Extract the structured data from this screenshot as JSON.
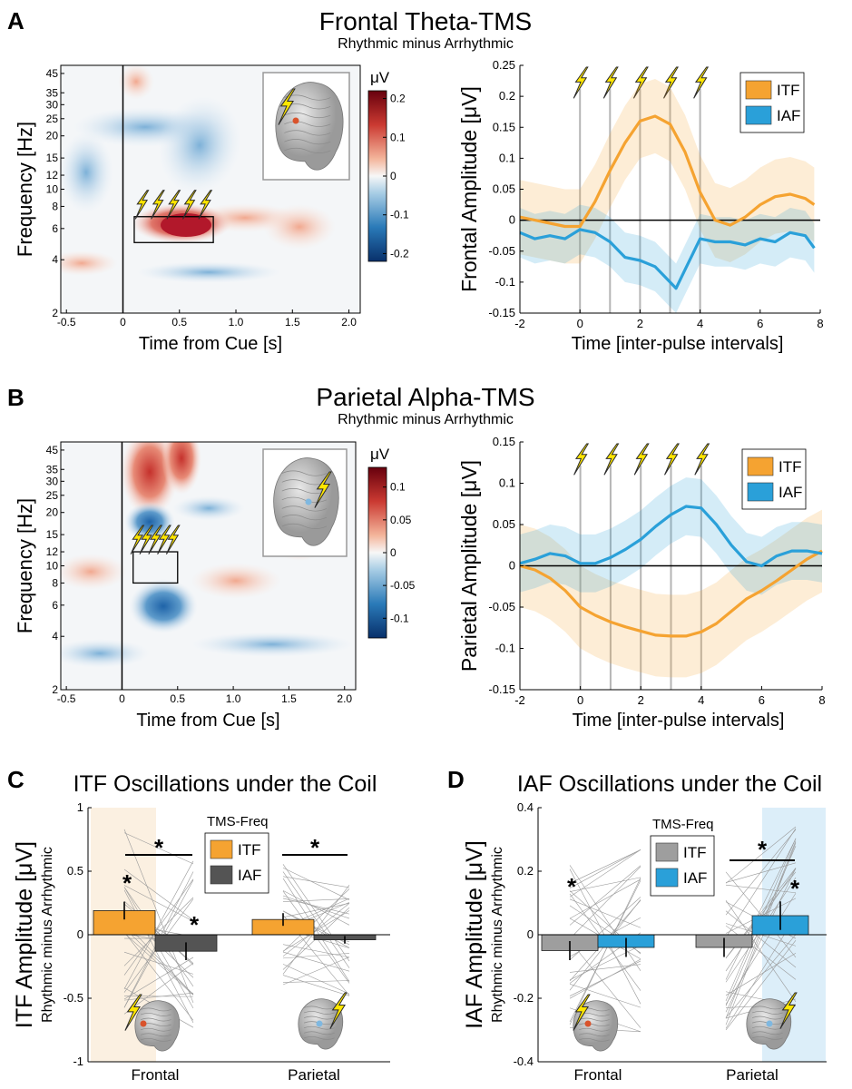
{
  "panels": {
    "A": {
      "label": "A",
      "title": "Frontal Theta-TMS",
      "subtitle": "Rhythmic minus Arrhythmic"
    },
    "B": {
      "label": "B",
      "title": "Parietal Alpha-TMS",
      "subtitle": "Rhythmic minus Arrhythmic"
    },
    "C": {
      "label": "C",
      "title": "ITF Oscillations under the Coil"
    },
    "D": {
      "label": "D",
      "title": "IAF Oscillations under the Coil"
    }
  },
  "chart_data": [
    {
      "id": "A-tf",
      "type": "heatmap",
      "xlabel": "Time from Cue [s]",
      "ylabel": "Frequency [Hz]",
      "xticks": [
        "-0.5",
        "0",
        "0.5",
        "1.0",
        "1.5",
        "2.0"
      ],
      "yticks": [
        "2",
        "4",
        "6",
        "8",
        "10",
        "12",
        "15",
        "20",
        "25",
        "30",
        "35",
        "45"
      ],
      "colorbar": {
        "unit": "μV",
        "ticks": [
          "0.2",
          "0.1",
          "0",
          "-0.1",
          "-0.2"
        ],
        "range": [
          -0.22,
          0.22
        ]
      },
      "stim_window": {
        "t_start": 0.1,
        "t_end": 0.8,
        "f_low": 5,
        "f_high": 7
      },
      "pulses": 5
    },
    {
      "id": "A-line",
      "type": "line",
      "xlabel": "Time [inter-pulse intervals]",
      "ylabel": "Frontal Amplitude [μV]",
      "xlim": [
        -2,
        8
      ],
      "ylim": [
        -0.15,
        0.25
      ],
      "xticks": [
        "-2",
        "0",
        "2",
        "4",
        "6",
        "8"
      ],
      "yticks": [
        "0.25",
        "0.2",
        "0.15",
        "0.1",
        "0.05",
        "0",
        "-0.05",
        "-0.1",
        "-0.15"
      ],
      "pulse_times": [
        0,
        1,
        2,
        3,
        4
      ],
      "series": [
        {
          "name": "ITF",
          "color": "#F5A331",
          "x": [
            -2,
            -1.5,
            -1,
            -0.5,
            0,
            0.5,
            1,
            1.5,
            2,
            2.5,
            3,
            3.5,
            4,
            4.5,
            5,
            5.5,
            6,
            6.5,
            7,
            7.5,
            7.8
          ],
          "y": [
            0.005,
            0.0,
            -0.005,
            -0.01,
            -0.01,
            0.03,
            0.08,
            0.125,
            0.16,
            0.168,
            0.155,
            0.11,
            0.045,
            0.0,
            -0.008,
            0.005,
            0.025,
            0.038,
            0.042,
            0.035,
            0.025
          ],
          "ci": 0.06
        },
        {
          "name": "IAF",
          "color": "#2AA0D9",
          "x": [
            -2,
            -1.5,
            -1,
            -0.5,
            0,
            0.5,
            1,
            1.5,
            2,
            2.5,
            3,
            3.2,
            3.5,
            4,
            4.5,
            5,
            5.5,
            6,
            6.5,
            7,
            7.5,
            7.8
          ],
          "y": [
            -0.02,
            -0.03,
            -0.025,
            -0.03,
            -0.015,
            -0.02,
            -0.035,
            -0.06,
            -0.065,
            -0.075,
            -0.1,
            -0.11,
            -0.08,
            -0.03,
            -0.035,
            -0.035,
            -0.04,
            -0.03,
            -0.035,
            -0.02,
            -0.025,
            -0.045
          ],
          "ci": 0.04
        }
      ]
    },
    {
      "id": "B-tf",
      "type": "heatmap",
      "xlabel": "Time from Cue [s]",
      "ylabel": "Frequency [Hz]",
      "xticks": [
        "-0.5",
        "0",
        "0.5",
        "1.0",
        "1.5",
        "2.0"
      ],
      "yticks": [
        "2",
        "4",
        "6",
        "8",
        "10",
        "12",
        "15",
        "20",
        "25",
        "30",
        "35",
        "45"
      ],
      "colorbar": {
        "unit": "μV",
        "ticks": [
          "0.1",
          "0.05",
          "0",
          "-0.05",
          "-0.1"
        ],
        "range": [
          -0.13,
          0.13
        ]
      },
      "stim_window": {
        "t_start": 0.1,
        "t_end": 0.5,
        "f_low": 8,
        "f_high": 12
      },
      "pulses": 5
    },
    {
      "id": "B-line",
      "type": "line",
      "xlabel": "Time [inter-pulse intervals]",
      "ylabel": "Parietal Amplitude [μV]",
      "xlim": [
        -2,
        8
      ],
      "ylim": [
        -0.15,
        0.15
      ],
      "xticks": [
        "-2",
        "0",
        "2",
        "4",
        "6",
        "8"
      ],
      "yticks": [
        "0.15",
        "0.1",
        "0.05",
        "0",
        "-0.05",
        "-0.1",
        "-0.15"
      ],
      "pulse_times": [
        0,
        1,
        2,
        3,
        4
      ],
      "series": [
        {
          "name": "ITF",
          "color": "#F5A331",
          "x": [
            -2,
            -1.5,
            -1,
            -0.5,
            0,
            0.5,
            1,
            1.5,
            2,
            2.5,
            3,
            3.5,
            4,
            4.5,
            5,
            5.5,
            6,
            6.5,
            7,
            7.5,
            8
          ],
          "y": [
            0.0,
            -0.005,
            -0.015,
            -0.03,
            -0.05,
            -0.06,
            -0.068,
            -0.074,
            -0.079,
            -0.084,
            -0.085,
            -0.085,
            -0.08,
            -0.07,
            -0.055,
            -0.04,
            -0.03,
            -0.018,
            -0.005,
            0.008,
            0.018
          ],
          "ci": 0.05
        },
        {
          "name": "IAF",
          "color": "#2AA0D9",
          "x": [
            -2,
            -1.5,
            -1,
            -0.5,
            0,
            0.5,
            1,
            1.5,
            2,
            2.5,
            3,
            3.5,
            4,
            4.5,
            5,
            5.5,
            6,
            6.5,
            7,
            7.5,
            8
          ],
          "y": [
            0.003,
            0.008,
            0.015,
            0.012,
            0.003,
            0.003,
            0.01,
            0.02,
            0.032,
            0.048,
            0.062,
            0.072,
            0.07,
            0.05,
            0.025,
            0.005,
            0.0,
            0.012,
            0.018,
            0.018,
            0.015
          ],
          "ci": 0.035
        }
      ]
    },
    {
      "id": "C-bar",
      "type": "bar",
      "ylabel": "ITF Amplitude [μV]",
      "ylabel2": "Rhythmic minus Arrhythmic",
      "ylim": [
        -1,
        1
      ],
      "yticks": [
        "1",
        "0.5",
        "0",
        "-0.5",
        "-1"
      ],
      "categories": [
        "Frontal",
        "Parietal"
      ],
      "legend_title": "TMS-Freq",
      "series": [
        {
          "name": "ITF",
          "color": "#F5A331",
          "values": [
            0.19,
            0.12
          ],
          "sem": [
            0.07,
            0.05
          ]
        },
        {
          "name": "IAF",
          "color": "#545454",
          "values": [
            -0.13,
            -0.04
          ],
          "sem": [
            0.07,
            0.03
          ]
        }
      ],
      "sig": [
        "*",
        "*",
        "*",
        "*"
      ]
    },
    {
      "id": "D-bar",
      "type": "bar",
      "ylabel": "IAF Amplitude [μV]",
      "ylabel2": "Rhythmic minus Arrhythmic",
      "ylim": [
        -0.4,
        0.4
      ],
      "yticks": [
        "0.4",
        "0.2",
        "0",
        "-0.2",
        "-0.4"
      ],
      "categories": [
        "Frontal",
        "Parietal"
      ],
      "legend_title": "TMS-Freq",
      "series": [
        {
          "name": "ITF",
          "color": "#9E9E9E",
          "values": [
            -0.05,
            -0.04
          ],
          "sem": [
            0.03,
            0.03
          ]
        },
        {
          "name": "IAF",
          "color": "#2AA0D9",
          "values": [
            -0.04,
            0.06
          ],
          "sem": [
            0.03,
            0.045
          ]
        }
      ],
      "sig": [
        "*",
        "*",
        "*"
      ]
    }
  ]
}
